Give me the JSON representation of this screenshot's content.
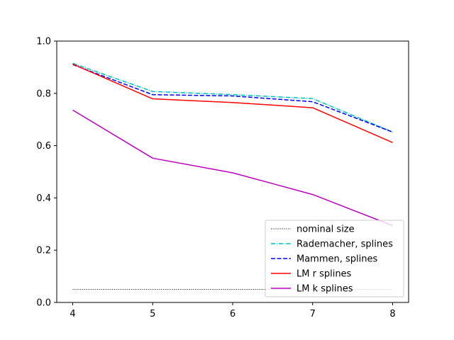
{
  "chart_data": {
    "type": "line",
    "title": "",
    "xlabel": "",
    "ylabel": "",
    "x": [
      4,
      5,
      6,
      7,
      8
    ],
    "xlim": [
      3.8,
      8.2
    ],
    "ylim": [
      0.0,
      1.0
    ],
    "xticks": [
      "4",
      "5",
      "6",
      "7",
      "8"
    ],
    "yticks": [
      "0.0",
      "0.2",
      "0.4",
      "0.6",
      "0.8",
      "1.0"
    ],
    "grid": false,
    "legend_position": "lower-right",
    "series": [
      {
        "name": "nominal size",
        "values": [
          0.05,
          0.05,
          0.05,
          0.05,
          0.05
        ],
        "color": "#000000",
        "style": "dotted"
      },
      {
        "name": "Rademacher, splines",
        "values": [
          0.915,
          0.807,
          0.795,
          0.78,
          0.652
        ],
        "color": "#00bfbf",
        "style": "dashdot"
      },
      {
        "name": "Mammen, splines",
        "values": [
          0.91,
          0.795,
          0.79,
          0.768,
          0.652
        ],
        "color": "#0000ff",
        "style": "dashed"
      },
      {
        "name": "LM r splines",
        "values": [
          0.912,
          0.779,
          0.765,
          0.745,
          0.612
        ],
        "color": "#ff0000",
        "style": "solid"
      },
      {
        "name": "LM k splines",
        "values": [
          0.736,
          0.552,
          0.496,
          0.413,
          0.294
        ],
        "color": "#bf00bf",
        "style": "solid"
      }
    ]
  }
}
